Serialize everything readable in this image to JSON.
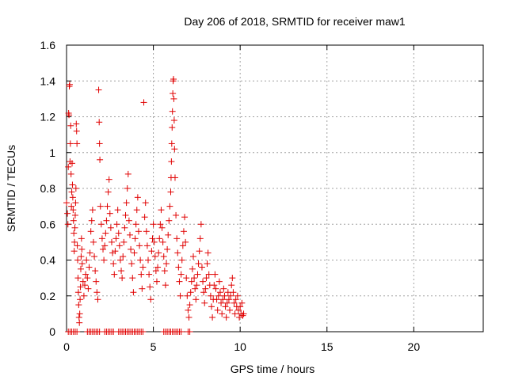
{
  "chart_data": {
    "type": "scatter",
    "title": "Day 206 of 2018, SRMTID for receiver maw1",
    "xlabel": "GPS time / hours",
    "ylabel": "SRMTID / TECUs",
    "xlim": [
      0,
      24
    ],
    "ylim": [
      0,
      1.6
    ],
    "xticks": [
      0,
      5,
      10,
      15,
      20
    ],
    "xtick_labels": [
      "0",
      "5",
      "10",
      "15",
      "20"
    ],
    "yticks": [
      0,
      0.2,
      0.4,
      0.6,
      0.8,
      1,
      1.2,
      1.4,
      1.6
    ],
    "ytick_labels": [
      "0",
      "0.2",
      "0.4",
      "0.6",
      "0.8",
      "1",
      "1.2",
      "1.4",
      "1.6"
    ],
    "grid": true,
    "marker": "+",
    "colors": {
      "series": "#e00000",
      "grid": "#a0a0a0",
      "axes": "#000000"
    },
    "series": [
      {
        "points": [
          [
            0.0,
            0.72
          ],
          [
            0.05,
            0.66
          ],
          [
            0.08,
            0.6
          ],
          [
            0.1,
            0.92
          ],
          [
            0.12,
            1.22
          ],
          [
            0.14,
            1.21
          ],
          [
            0.16,
            1.37
          ],
          [
            0.18,
            1.38
          ],
          [
            0.2,
            0.95
          ],
          [
            0.22,
            1.05
          ],
          [
            0.24,
            1.15
          ],
          [
            0.26,
            0.88
          ],
          [
            0.28,
            0.7
          ],
          [
            0.3,
            0.78
          ],
          [
            0.32,
            0.94
          ],
          [
            0.34,
            0.82
          ],
          [
            0.36,
            0.75
          ],
          [
            0.38,
            0.68
          ],
          [
            0.4,
            0.62
          ],
          [
            0.42,
            0.55
          ],
          [
            0.44,
            0.45
          ],
          [
            0.46,
            0.5
          ],
          [
            0.48,
            0.58
          ],
          [
            0.5,
            0.65
          ],
          [
            0.52,
            0.72
          ],
          [
            0.54,
            0.8
          ],
          [
            0.56,
            1.16
          ],
          [
            0.58,
            1.12
          ],
          [
            0.6,
            1.05
          ],
          [
            0.62,
            0.48
          ],
          [
            0.64,
            0.4
          ],
          [
            0.66,
            0.3
          ],
          [
            0.68,
            0.22
          ],
          [
            0.7,
            0.15
          ],
          [
            0.72,
            0.08
          ],
          [
            0.74,
            0.05
          ],
          [
            0.76,
            0.1
          ],
          [
            0.78,
            0.18
          ],
          [
            0.8,
            0.25
          ],
          [
            0.82,
            0.35
          ],
          [
            0.84,
            0.42
          ],
          [
            0.86,
            0.52
          ],
          [
            0.88,
            0.46
          ],
          [
            0.9,
            0.38
          ],
          [
            0.95,
            0.28
          ],
          [
            1.0,
            0.2
          ],
          [
            1.05,
            0.26
          ],
          [
            1.1,
            0.32
          ],
          [
            1.15,
            0.4
          ],
          [
            1.2,
            0.3
          ],
          [
            1.25,
            0.24
          ],
          [
            1.3,
            0.36
          ],
          [
            1.35,
            0.44
          ],
          [
            1.4,
            0.56
          ],
          [
            1.45,
            0.62
          ],
          [
            1.5,
            0.68
          ],
          [
            1.55,
            0.5
          ],
          [
            1.6,
            0.42
          ],
          [
            1.65,
            0.34
          ],
          [
            1.7,
            0.28
          ],
          [
            1.75,
            0.22
          ],
          [
            1.8,
            0.18
          ],
          [
            1.85,
            1.35
          ],
          [
            1.88,
            1.17
          ],
          [
            1.9,
            1.05
          ],
          [
            1.92,
            0.96
          ],
          [
            1.95,
            0.7
          ],
          [
            2.0,
            0.6
          ],
          [
            2.05,
            0.52
          ],
          [
            2.1,
            0.46
          ],
          [
            2.15,
            0.4
          ],
          [
            2.2,
            0.48
          ],
          [
            2.25,
            0.55
          ],
          [
            2.3,
            0.62
          ],
          [
            2.35,
            0.7
          ],
          [
            2.4,
            0.78
          ],
          [
            2.45,
            0.85
          ],
          [
            2.5,
            0.66
          ],
          [
            2.55,
            0.58
          ],
          [
            2.6,
            0.5
          ],
          [
            2.65,
            0.44
          ],
          [
            2.7,
            0.38
          ],
          [
            2.75,
            0.32
          ],
          [
            2.8,
            0.45
          ],
          [
            2.85,
            0.52
          ],
          [
            2.9,
            0.6
          ],
          [
            2.95,
            0.68
          ],
          [
            3.0,
            0.55
          ],
          [
            3.05,
            0.48
          ],
          [
            3.1,
            0.4
          ],
          [
            3.15,
            0.34
          ],
          [
            3.2,
            0.3
          ],
          [
            3.25,
            0.42
          ],
          [
            3.3,
            0.5
          ],
          [
            3.35,
            0.58
          ],
          [
            3.4,
            0.65
          ],
          [
            3.45,
            0.72
          ],
          [
            3.5,
            0.8
          ],
          [
            3.55,
            0.88
          ],
          [
            3.6,
            0.62
          ],
          [
            3.65,
            0.54
          ],
          [
            3.7,
            0.46
          ],
          [
            3.75,
            0.38
          ],
          [
            3.8,
            0.3
          ],
          [
            3.85,
            0.22
          ],
          [
            3.9,
            0.44
          ],
          [
            3.95,
            0.52
          ],
          [
            4.0,
            0.6
          ],
          [
            4.05,
            0.68
          ],
          [
            4.1,
            0.75
          ],
          [
            4.15,
            0.56
          ],
          [
            4.2,
            0.48
          ],
          [
            4.25,
            0.4
          ],
          [
            4.3,
            0.32
          ],
          [
            4.35,
            0.24
          ],
          [
            4.4,
            0.36
          ],
          [
            4.45,
            1.28
          ],
          [
            4.5,
            0.64
          ],
          [
            4.55,
            0.72
          ],
          [
            4.6,
            0.56
          ],
          [
            4.65,
            0.48
          ],
          [
            4.7,
            0.4
          ],
          [
            4.75,
            0.32
          ],
          [
            4.8,
            0.25
          ],
          [
            4.85,
            0.18
          ],
          [
            4.9,
            0.45
          ],
          [
            4.95,
            0.52
          ],
          [
            5.0,
            0.6
          ],
          [
            5.05,
            0.5
          ],
          [
            5.1,
            0.42
          ],
          [
            5.15,
            0.34
          ],
          [
            5.2,
            0.28
          ],
          [
            5.25,
            0.36
          ],
          [
            5.3,
            0.44
          ],
          [
            5.35,
            0.52
          ],
          [
            5.4,
            0.6
          ],
          [
            5.45,
            0.68
          ],
          [
            5.5,
            0.58
          ],
          [
            5.55,
            0.5
          ],
          [
            5.6,
            0.42
          ],
          [
            5.65,
            0.34
          ],
          [
            5.7,
            0.26
          ],
          [
            5.75,
            0.38
          ],
          [
            5.8,
            0.46
          ],
          [
            5.85,
            0.54
          ],
          [
            5.9,
            0.62
          ],
          [
            5.95,
            0.7
          ],
          [
            6.0,
            0.78
          ],
          [
            6.02,
            0.86
          ],
          [
            6.04,
            0.95
          ],
          [
            6.06,
            1.05
          ],
          [
            6.08,
            1.14
          ],
          [
            6.1,
            1.23
          ],
          [
            6.12,
            1.33
          ],
          [
            6.14,
            1.4
          ],
          [
            6.16,
            1.41
          ],
          [
            6.18,
            1.3
          ],
          [
            6.2,
            1.18
          ],
          [
            6.22,
            1.02
          ],
          [
            6.25,
            0.86
          ],
          [
            6.3,
            0.65
          ],
          [
            6.35,
            0.52
          ],
          [
            6.4,
            0.44
          ],
          [
            6.45,
            0.36
          ],
          [
            6.5,
            0.28
          ],
          [
            6.55,
            0.2
          ],
          [
            6.6,
            0.32
          ],
          [
            6.65,
            0.4
          ],
          [
            6.7,
            0.48
          ],
          [
            6.75,
            0.56
          ],
          [
            6.8,
            0.64
          ],
          [
            6.85,
            0.5
          ],
          [
            6.9,
            0.3
          ],
          [
            6.95,
            0.2
          ],
          [
            7.0,
            0.12
          ],
          [
            7.05,
            0.08
          ],
          [
            7.1,
            0.15
          ],
          [
            7.15,
            0.22
          ],
          [
            7.2,
            0.28
          ],
          [
            7.25,
            0.35
          ],
          [
            7.3,
            0.42
          ],
          [
            7.35,
            0.3
          ],
          [
            7.4,
            0.24
          ],
          [
            7.45,
            0.18
          ],
          [
            7.5,
            0.26
          ],
          [
            7.55,
            0.32
          ],
          [
            7.6,
            0.38
          ],
          [
            7.65,
            0.45
          ],
          [
            7.7,
            0.52
          ],
          [
            7.75,
            0.6
          ],
          [
            7.8,
            0.36
          ],
          [
            7.85,
            0.28
          ],
          [
            7.9,
            0.22
          ],
          [
            7.95,
            0.16
          ],
          [
            8.0,
            0.24
          ],
          [
            8.05,
            0.3
          ],
          [
            8.1,
            0.38
          ],
          [
            8.15,
            0.44
          ],
          [
            8.2,
            0.32
          ],
          [
            8.25,
            0.26
          ],
          [
            8.3,
            0.2
          ],
          [
            8.35,
            0.14
          ],
          [
            8.4,
            0.08
          ],
          [
            8.45,
            0.18
          ],
          [
            8.5,
            0.26
          ],
          [
            8.55,
            0.32
          ],
          [
            8.6,
            0.24
          ],
          [
            8.65,
            0.18
          ],
          [
            8.7,
            0.12
          ],
          [
            8.75,
            0.2
          ],
          [
            8.8,
            0.28
          ],
          [
            8.85,
            0.22
          ],
          [
            8.9,
            0.16
          ],
          [
            8.95,
            0.1
          ],
          [
            9.0,
            0.18
          ],
          [
            9.05,
            0.24
          ],
          [
            9.1,
            0.2
          ],
          [
            9.15,
            0.14
          ],
          [
            9.2,
            0.08
          ],
          [
            9.25,
            0.16
          ],
          [
            9.3,
            0.22
          ],
          [
            9.35,
            0.18
          ],
          [
            9.4,
            0.12
          ],
          [
            9.45,
            0.2
          ],
          [
            9.5,
            0.26
          ],
          [
            9.55,
            0.3
          ],
          [
            9.6,
            0.22
          ],
          [
            9.65,
            0.16
          ],
          [
            9.7,
            0.1
          ],
          [
            9.75,
            0.18
          ],
          [
            9.8,
            0.14
          ],
          [
            9.85,
            0.2
          ],
          [
            9.9,
            0.12
          ],
          [
            9.95,
            0.08
          ],
          [
            10.0,
            0.14
          ],
          [
            10.05,
            0.1
          ],
          [
            10.1,
            0.16
          ],
          [
            10.15,
            0.09
          ],
          [
            10.2,
            0.1
          ],
          [
            0.1,
            0
          ],
          [
            0.2,
            0
          ],
          [
            0.3,
            0
          ],
          [
            0.4,
            0
          ],
          [
            0.5,
            0
          ],
          [
            0.6,
            0
          ],
          [
            1.2,
            0
          ],
          [
            1.3,
            0
          ],
          [
            1.4,
            0
          ],
          [
            1.5,
            0
          ],
          [
            1.6,
            0
          ],
          [
            1.7,
            0
          ],
          [
            1.8,
            0
          ],
          [
            1.9,
            0
          ],
          [
            2.2,
            0
          ],
          [
            2.3,
            0
          ],
          [
            2.4,
            0
          ],
          [
            2.5,
            0
          ],
          [
            2.6,
            0
          ],
          [
            2.7,
            0
          ],
          [
            3.0,
            0
          ],
          [
            3.1,
            0
          ],
          [
            3.2,
            0
          ],
          [
            3.3,
            0
          ],
          [
            3.4,
            0
          ],
          [
            3.5,
            0
          ],
          [
            3.6,
            0
          ],
          [
            3.7,
            0
          ],
          [
            3.8,
            0
          ],
          [
            3.9,
            0
          ],
          [
            4.0,
            0
          ],
          [
            4.1,
            0
          ],
          [
            4.2,
            0
          ],
          [
            4.3,
            0
          ],
          [
            4.4,
            0
          ],
          [
            5.6,
            0
          ],
          [
            5.7,
            0
          ],
          [
            5.8,
            0
          ],
          [
            5.9,
            0
          ],
          [
            6.0,
            0
          ],
          [
            6.1,
            0
          ],
          [
            6.2,
            0
          ],
          [
            6.3,
            0
          ],
          [
            6.4,
            0
          ],
          [
            6.5,
            0
          ],
          [
            6.6,
            0
          ],
          [
            7.0,
            0
          ],
          [
            7.1,
            0
          ]
        ]
      }
    ]
  }
}
